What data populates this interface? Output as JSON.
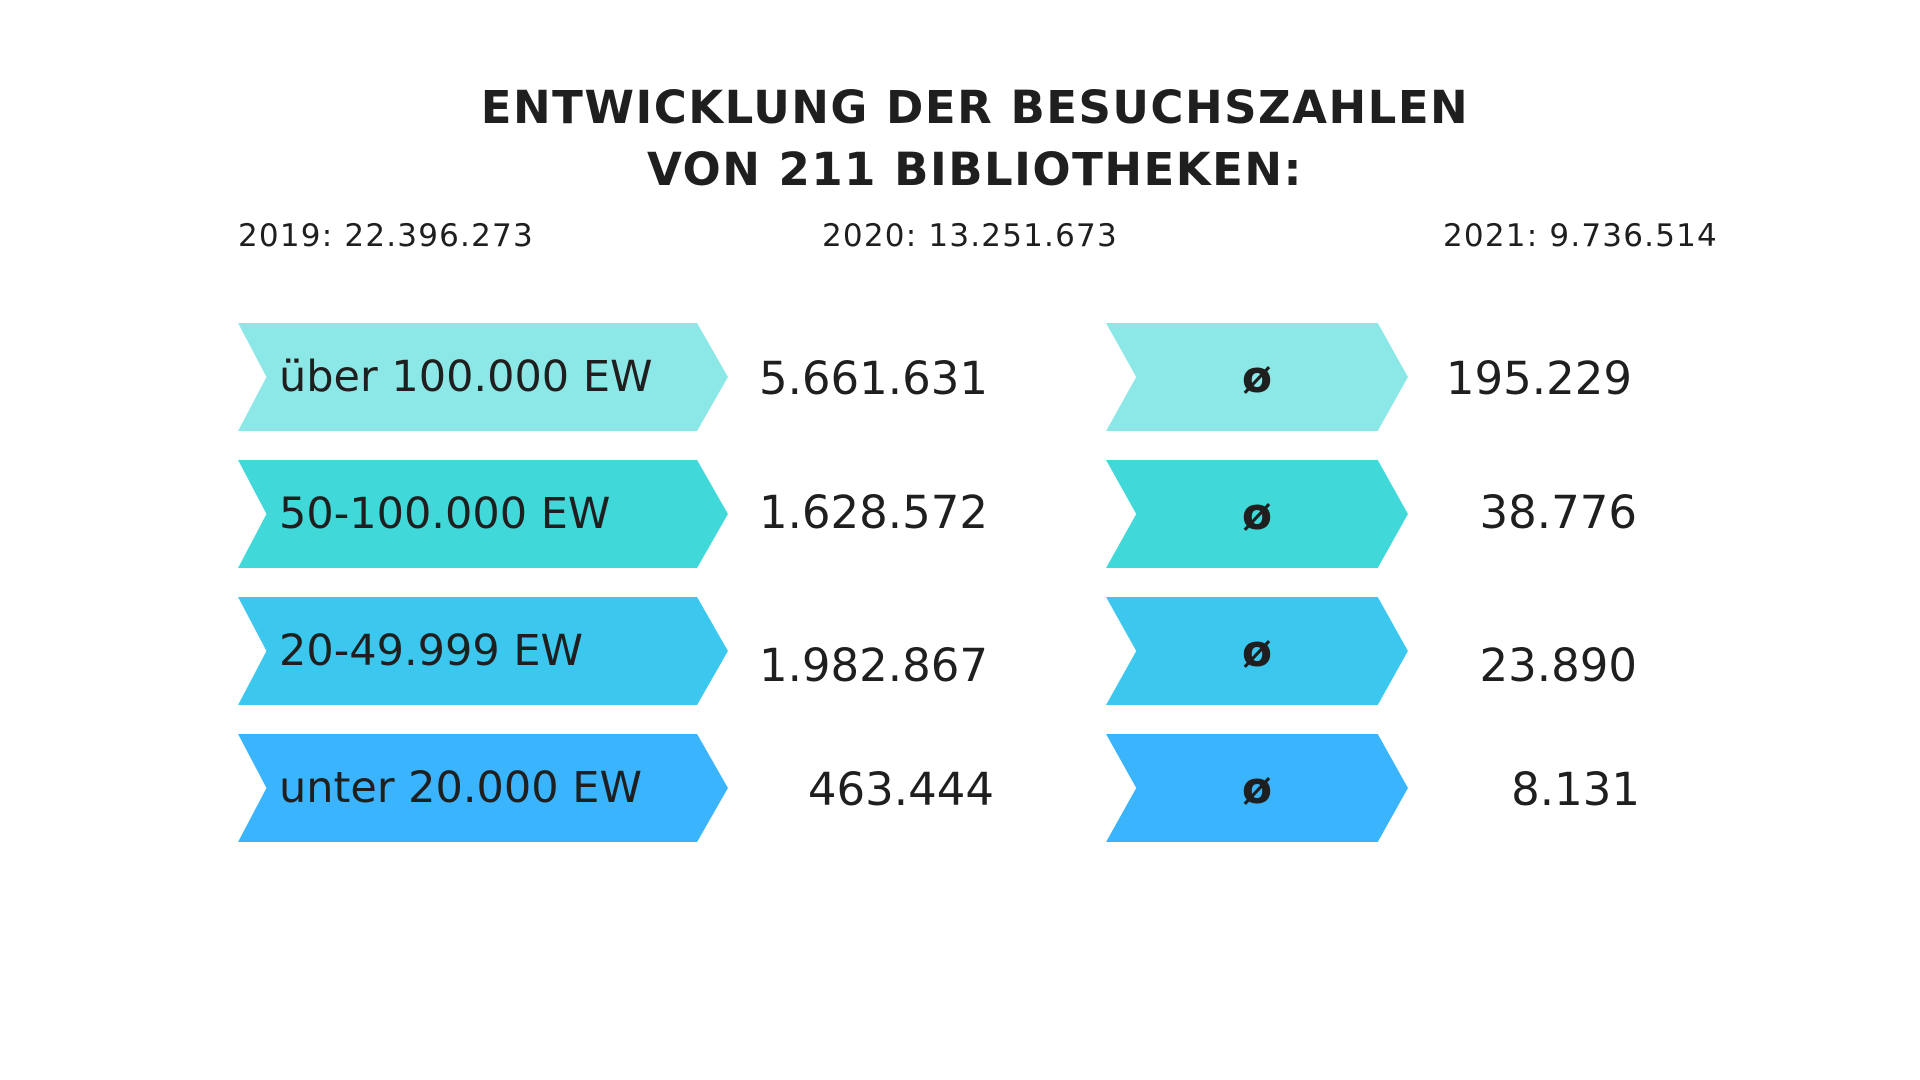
{
  "title": {
    "line1": "ENTWICKLUNG DER BESUCHSZAHLEN",
    "line2": "VON 211 BIBLIOTHEKEN:"
  },
  "years": [
    {
      "label": "2019: 22.396.273"
    },
    {
      "label": "2020: 13.251.673"
    },
    {
      "label": "2021: 9.736.514"
    }
  ],
  "average_symbol": "ø",
  "rows": [
    {
      "category": "über 100.000 EW",
      "total": "5.661.631",
      "average": "195.229",
      "color": "#8CE8E6"
    },
    {
      "category": "50-100.000 EW",
      "total": "1.628.572",
      "average": "38.776",
      "color": "#40D8D8"
    },
    {
      "category": "20-49.999 EW",
      "total": "1.982.867",
      "average": "23.890",
      "color": "#3CC8EE"
    },
    {
      "category": "unter 20.000 EW",
      "total": "463.444",
      "average": "8.131",
      "color": "#3AB4FC"
    }
  ]
}
